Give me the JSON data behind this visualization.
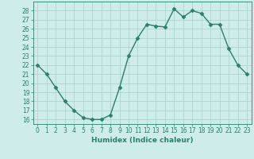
{
  "x": [
    0,
    1,
    2,
    3,
    4,
    5,
    6,
    7,
    8,
    9,
    10,
    11,
    12,
    13,
    14,
    15,
    16,
    17,
    18,
    19,
    20,
    21,
    22,
    23
  ],
  "y": [
    22,
    21,
    19.5,
    18,
    17,
    16.2,
    16,
    16,
    16.5,
    19.5,
    23,
    25,
    26.5,
    26.3,
    26.2,
    28.2,
    27.3,
    28,
    27.7,
    26.5,
    26.5,
    23.8,
    22,
    21
  ],
  "line_color": "#2e7d6e",
  "marker": "D",
  "markersize": 2.5,
  "linewidth": 1.0,
  "bg_color": "#ceecea",
  "grid_color": "#aed4d0",
  "xlabel": "Humidex (Indice chaleur)",
  "xlim": [
    -0.5,
    23.5
  ],
  "ylim": [
    15.5,
    29
  ],
  "yticks": [
    16,
    17,
    18,
    19,
    20,
    21,
    22,
    23,
    24,
    25,
    26,
    27,
    28
  ],
  "xticks": [
    0,
    1,
    2,
    3,
    4,
    5,
    6,
    7,
    8,
    9,
    10,
    11,
    12,
    13,
    14,
    15,
    16,
    17,
    18,
    19,
    20,
    21,
    22,
    23
  ],
  "tick_fontsize": 5.5,
  "label_fontsize": 6.5
}
